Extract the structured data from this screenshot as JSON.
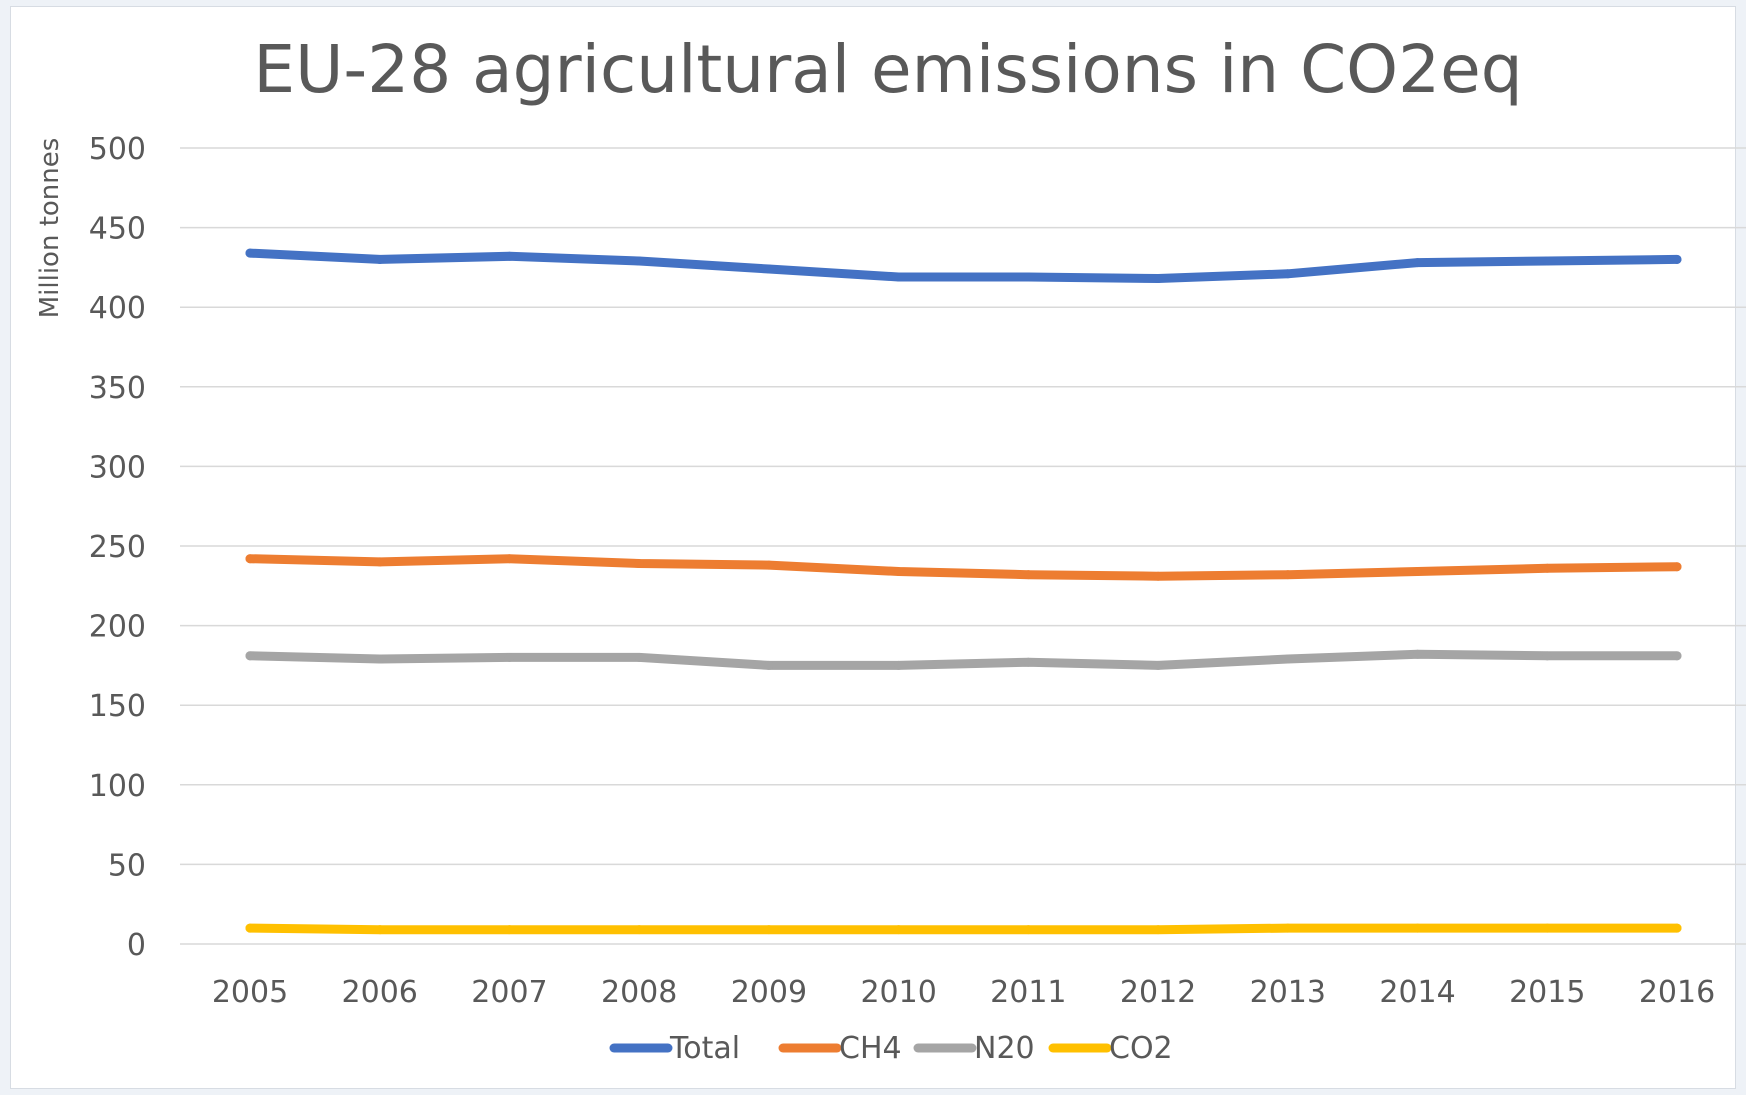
{
  "chart_data": {
    "type": "line",
    "title": "EU-28 agricultural emissions in CO2eq",
    "xlabel": "",
    "ylabel": "Million tonnes",
    "x": [
      "2005",
      "2006",
      "2007",
      "2008",
      "2009",
      "2010",
      "2011",
      "2012",
      "2013",
      "2014",
      "2015",
      "2016"
    ],
    "ylim": [
      0,
      500
    ],
    "yticks": [
      "0",
      "50",
      "100",
      "150",
      "200",
      "250",
      "300",
      "350",
      "400",
      "450",
      "500"
    ],
    "grid": true,
    "legend_position": "bottom",
    "series": [
      {
        "name": "Total",
        "color": "#4472c4",
        "values": [
          434,
          430,
          432,
          429,
          424,
          419,
          419,
          418,
          421,
          428,
          429,
          430
        ]
      },
      {
        "name": "CH4",
        "color": "#ed7d31",
        "values": [
          242,
          240,
          242,
          239,
          238,
          234,
          232,
          231,
          232,
          234,
          236,
          237
        ]
      },
      {
        "name": "N20",
        "color": "#a5a5a5",
        "values": [
          181,
          179,
          180,
          180,
          175,
          175,
          177,
          175,
          179,
          182,
          181,
          181
        ]
      },
      {
        "name": "CO2",
        "color": "#ffc000",
        "values": [
          10,
          9,
          9,
          9,
          9,
          9,
          9,
          9,
          10,
          10,
          10,
          10
        ]
      }
    ]
  }
}
